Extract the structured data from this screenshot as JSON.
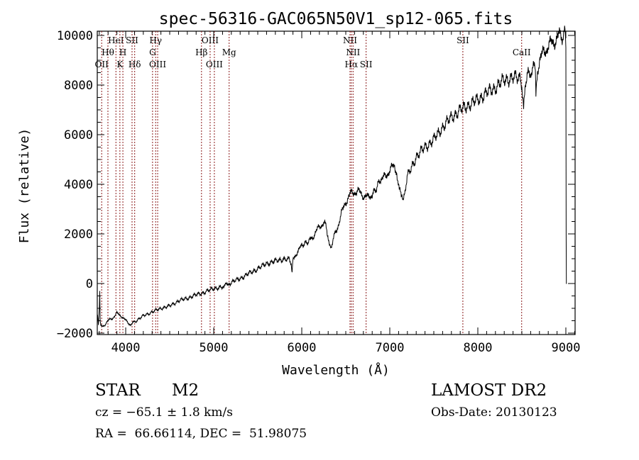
{
  "chart_data": {
    "type": "line",
    "title": "spec-56316-GAC065N50V1_sp12-065.fits",
    "xlabel": "Wavelength (Å)",
    "ylabel": "Flux (relative)",
    "xlim": [
      3677,
      9105
    ],
    "ylim": [
      -2057,
      10171
    ],
    "xticks": [
      4000,
      5000,
      6000,
      7000,
      8000,
      9000
    ],
    "xtick_labels": [
      "4000",
      "5000",
      "6000",
      "7000",
      "8000",
      "9000"
    ],
    "yticks": [
      -2000,
      0,
      2000,
      4000,
      6000,
      8000,
      10000
    ],
    "ytick_labels": [
      "−2000",
      "0",
      "2000",
      "4000",
      "6000",
      "8000",
      "10000"
    ],
    "grid": false,
    "line_color": "#000000",
    "marker_color": "#8b1a1a",
    "series": [
      {
        "name": "spectrum",
        "x": [
          3680,
          3690,
          3700,
          3705,
          3710,
          3720,
          3750,
          3800,
          3850,
          3900,
          3950,
          4000,
          4050,
          4100,
          4200,
          4300,
          4400,
          4500,
          4600,
          4700,
          4800,
          4900,
          5000,
          5100,
          5150,
          5200,
          5300,
          5400,
          5500,
          5600,
          5700,
          5800,
          5860,
          5880,
          5890,
          5900,
          5950,
          6000,
          6100,
          6150,
          6200,
          6250,
          6270,
          6300,
          6330,
          6400,
          6450,
          6500,
          6550,
          6600,
          6650,
          6700,
          6750,
          6800,
          6900,
          6950,
          7000,
          7050,
          7080,
          7100,
          7130,
          7150,
          7200,
          7300,
          7400,
          7500,
          7600,
          7700,
          7800,
          7900,
          8000,
          8100,
          8200,
          8300,
          8400,
          8480,
          8500,
          8520,
          8540,
          8560,
          8600,
          8650,
          8660,
          8670,
          8700,
          8750,
          8800,
          8850,
          8900,
          8950,
          8990,
          9000,
          9003,
          9006,
          9010
        ],
        "y": [
          -1200,
          -1700,
          -1000,
          -300,
          -1500,
          -1700,
          -1700,
          -1500,
          -1400,
          -1200,
          -1300,
          -1500,
          -1650,
          -1550,
          -1300,
          -1150,
          -1000,
          -900,
          -700,
          -600,
          -450,
          -350,
          -200,
          -150,
          -50,
          50,
          200,
          400,
          600,
          800,
          900,
          1000,
          950,
          800,
          500,
          950,
          1300,
          1500,
          1800,
          2000,
          2300,
          2450,
          2400,
          1800,
          1500,
          2200,
          2800,
          3300,
          3600,
          3700,
          3700,
          3550,
          3450,
          3600,
          4200,
          4300,
          4600,
          4700,
          4400,
          4000,
          3500,
          3400,
          4300,
          5100,
          5500,
          5800,
          6300,
          6700,
          7000,
          7200,
          7400,
          7700,
          7900,
          8200,
          8300,
          8300,
          8100,
          7000,
          8100,
          8300,
          8500,
          8700,
          7600,
          8400,
          9000,
          9300,
          9600,
          9700,
          9900,
          10000,
          10100,
          9500,
          2000,
          0,
          0
        ]
      }
    ],
    "line_markers": [
      {
        "label": "OII",
        "wavelength": 3727,
        "row": 3
      },
      {
        "label": "Hθ",
        "wavelength": 3798,
        "row": 2
      },
      {
        "label": "HeI",
        "wavelength": 3889,
        "row": 1
      },
      {
        "label": "K",
        "wavelength": 3934,
        "row": 3
      },
      {
        "label": "H",
        "wavelength": 3968,
        "row": 2
      },
      {
        "label": "SII",
        "wavelength": 4072,
        "row": 1
      },
      {
        "label": "Hδ",
        "wavelength": 4102,
        "row": 3
      },
      {
        "label": "G",
        "wavelength": 4305,
        "row": 2
      },
      {
        "label": "Hγ",
        "wavelength": 4340,
        "row": 1
      },
      {
        "label": "OIII",
        "wavelength": 4363,
        "row": 3
      },
      {
        "label": "Hβ",
        "wavelength": 4861,
        "row": 2
      },
      {
        "label": "OIII",
        "wavelength": 4959,
        "row": 1
      },
      {
        "label": "OIII",
        "wavelength": 5007,
        "row": 3
      },
      {
        "label": "Mg",
        "wavelength": 5175,
        "row": 2
      },
      {
        "label": "NII",
        "wavelength": 6548,
        "row": 1
      },
      {
        "label": "Hα",
        "wavelength": 6563,
        "row": 3
      },
      {
        "label": "NII",
        "wavelength": 6583,
        "row": 2
      },
      {
        "label": "SII",
        "wavelength": 6731,
        "row": 3
      },
      {
        "label": "SII",
        "wavelength": 7830,
        "row": 1
      },
      {
        "label": "CaII",
        "wavelength": 8498,
        "row": 2
      }
    ]
  },
  "info": {
    "object_type": "STAR",
    "subclass": "M2",
    "survey": "LAMOST DR2",
    "cz": "cz = −65.1 ± 1.8 km/s",
    "obs_date": "Obs-Date: 20130123",
    "coords": "RA =  66.66114, DEC =  51.98075"
  }
}
